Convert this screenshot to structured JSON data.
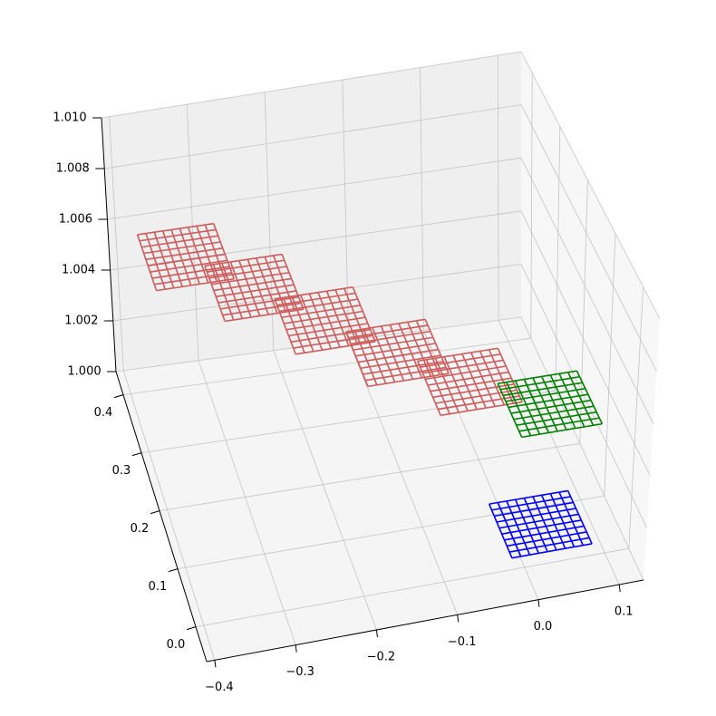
{
  "chart_data": {
    "type": "wireframe3d",
    "xlim": [
      -0.41,
      0.13
    ],
    "ylim": [
      -0.06,
      0.44
    ],
    "zlim": [
      1.0,
      1.01
    ],
    "xticks": [
      {
        "value": -0.4,
        "label": "−0.4"
      },
      {
        "value": -0.3,
        "label": "−0.3"
      },
      {
        "value": -0.2,
        "label": "−0.2"
      },
      {
        "value": -0.1,
        "label": "−0.1"
      },
      {
        "value": 0,
        "label": "0.0"
      },
      0.1
    ],
    "yticks": [
      {
        "value": 0,
        "label": "0.0"
      },
      0.1,
      0.2,
      0.3,
      0.4
    ],
    "zticks": [
      {
        "value": 1.0,
        "label": "1.000"
      },
      1.002,
      1.004,
      1.006,
      1.008,
      {
        "value": 1.01,
        "label": "1.010"
      }
    ],
    "grid": true,
    "surfaces": [
      {
        "color": "#cd5c5c",
        "x": [
          -0.37,
          -0.27
        ],
        "y": [
          0.35,
          0.45
        ],
        "z": 1.005,
        "grid_lines": 10
      },
      {
        "color": "#cd5c5c",
        "x": [
          -0.3,
          -0.2
        ],
        "y": [
          0.28,
          0.38
        ],
        "z": 1.005,
        "grid_lines": 10
      },
      {
        "color": "#cd5c5c",
        "x": [
          -0.23,
          -0.13
        ],
        "y": [
          0.205,
          0.305
        ],
        "z": 1.005,
        "grid_lines": 10
      },
      {
        "color": "#cd5c5c",
        "x": [
          -0.16,
          -0.06
        ],
        "y": [
          0.13,
          0.23
        ],
        "z": 1.005,
        "grid_lines": 10
      },
      {
        "color": "#cd5c5c",
        "x": [
          -0.09,
          0.01
        ],
        "y": [
          0.06,
          0.16
        ],
        "z": 1.005,
        "grid_lines": 10
      },
      {
        "color": "green",
        "x": [
          0.02,
          0.12
        ],
        "y": [
          0.09,
          0.19
        ],
        "z": 1.003,
        "grid_lines": 10
      },
      {
        "color": "blue",
        "x": [
          -0.01,
          0.09
        ],
        "y": [
          0.02,
          0.12
        ],
        "z": 1.0,
        "grid_lines": 10
      }
    ]
  }
}
